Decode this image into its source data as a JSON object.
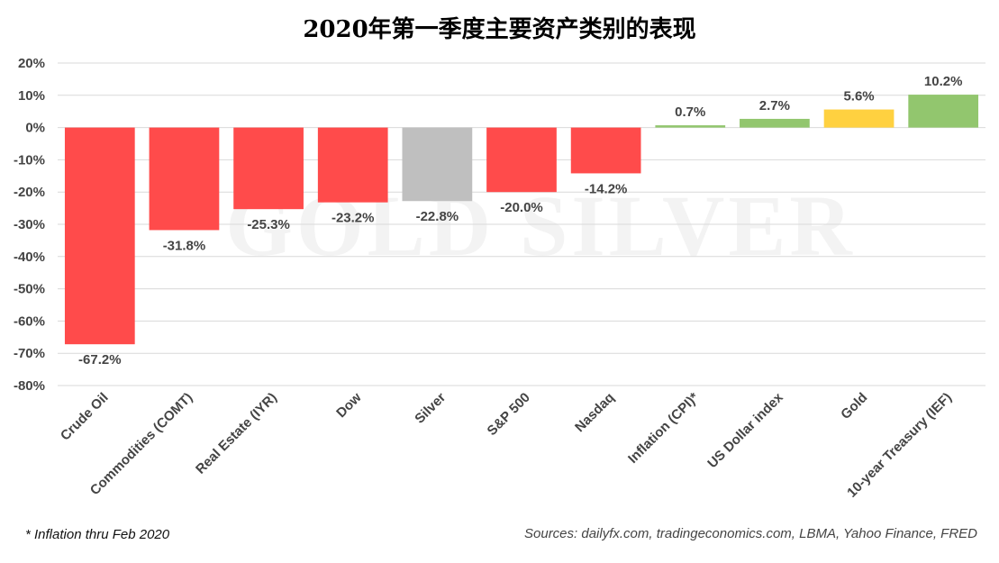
{
  "chart_data": {
    "type": "bar",
    "title": "2020年第一季度主要资产类别的表现",
    "categories": [
      "Crude Oil",
      "Commodities (COMT)",
      "Real Estate (IYR)",
      "Dow",
      "Silver",
      "S&P 500",
      "Nasdaq",
      "Inflation (CPI)*",
      "US Dollar index",
      "Gold",
      "10-year Treasury (IEF)"
    ],
    "values": [
      -67.2,
      -31.8,
      -25.3,
      -23.2,
      -22.8,
      -20.0,
      -14.2,
      0.7,
      2.7,
      5.6,
      10.2
    ],
    "value_labels": [
      "-67.2%",
      "-31.8%",
      "-25.3%",
      "-23.2%",
      "-22.8%",
      "-20.0%",
      "-14.2%",
      "0.7%",
      "2.7%",
      "5.6%",
      "10.2%"
    ],
    "colors": [
      "#ff4b4b",
      "#ff4b4b",
      "#ff4b4b",
      "#ff4b4b",
      "#bfbfbf",
      "#ff4b4b",
      "#ff4b4b",
      "#92c66e",
      "#92c66e",
      "#ffd140",
      "#92c66e"
    ],
    "ylim": [
      -80,
      20
    ],
    "yticks": [
      20,
      10,
      0,
      -10,
      -20,
      -30,
      -40,
      -50,
      -60,
      -70,
      -80
    ],
    "ytick_labels": [
      "20%",
      "10%",
      "0%",
      "-10%",
      "-20%",
      "-30%",
      "-40%",
      "-50%",
      "-60%",
      "-70%",
      "-80%"
    ],
    "grid": true,
    "xlabel": "",
    "ylabel": ""
  },
  "watermark": "GOLD SILVER",
  "footnote": "* Inflation thru Feb 2020",
  "sources": "Sources: dailyfx.com, tradingeconomics.com, LBMA, Yahoo Finance, FRED"
}
